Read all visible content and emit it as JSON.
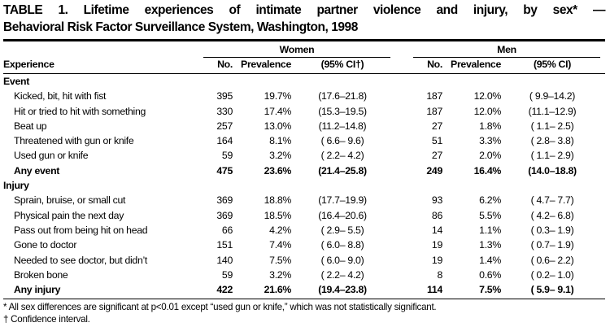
{
  "title_line1": "TABLE 1. Lifetime experiences of intimate partner violence and injury, by sex* —",
  "title_line2": "Behavioral Risk Factor Surveillance System, Washington, 1998",
  "header": {
    "experience": "Experience",
    "women_group": "Women",
    "men_group": "Men",
    "women_no": "No.",
    "women_prevalence": "Prevalence",
    "women_ci": "(95% CI†)",
    "men_no": "No.",
    "men_prevalence": "Prevalence",
    "men_ci": "(95% CI)"
  },
  "sections": [
    {
      "label": "Event",
      "rows": [
        {
          "exp": "Kicked, bit, hit with fist",
          "w_no": "395",
          "w_prev": "19.7%",
          "w_ci": "(17.6–21.8)",
          "m_no": "187",
          "m_prev": "12.0%",
          "m_ci": "( 9.9–14.2)"
        },
        {
          "exp": "Hit or tried to hit with something",
          "w_no": "330",
          "w_prev": "17.4%",
          "w_ci": "(15.3–19.5)",
          "m_no": "187",
          "m_prev": "12.0%",
          "m_ci": "(11.1–12.9)"
        },
        {
          "exp": "Beat up",
          "w_no": "257",
          "w_prev": "13.0%",
          "w_ci": "(11.2–14.8)",
          "m_no": "27",
          "m_prev": "1.8%",
          "m_ci": "( 1.1– 2.5)"
        },
        {
          "exp": "Threatened with gun or knife",
          "w_no": "164",
          "w_prev": "8.1%",
          "w_ci": "( 6.6– 9.6)",
          "m_no": "51",
          "m_prev": "3.3%",
          "m_ci": "( 2.8– 3.8)"
        },
        {
          "exp": "Used gun or knife",
          "w_no": "59",
          "w_prev": "3.2%",
          "w_ci": "( 2.2– 4.2)",
          "m_no": "27",
          "m_prev": "2.0%",
          "m_ci": "( 1.1– 2.9)"
        },
        {
          "exp": "Any event",
          "w_no": "475",
          "w_prev": "23.6%",
          "w_ci": "(21.4–25.8)",
          "m_no": "249",
          "m_prev": "16.4%",
          "m_ci": "(14.0–18.8)"
        }
      ]
    },
    {
      "label": "Injury",
      "rows": [
        {
          "exp": "Sprain, bruise, or small cut",
          "w_no": "369",
          "w_prev": "18.8%",
          "w_ci": "(17.7–19.9)",
          "m_no": "93",
          "m_prev": "6.2%",
          "m_ci": "( 4.7– 7.7)"
        },
        {
          "exp": "Physical pain the next day",
          "w_no": "369",
          "w_prev": "18.5%",
          "w_ci": "(16.4–20.6)",
          "m_no": "86",
          "m_prev": "5.5%",
          "m_ci": "( 4.2– 6.8)"
        },
        {
          "exp": "Pass out from being hit on head",
          "w_no": "66",
          "w_prev": "4.2%",
          "w_ci": "( 2.9– 5.5)",
          "m_no": "14",
          "m_prev": "1.1%",
          "m_ci": "( 0.3– 1.9)"
        },
        {
          "exp": "Gone to doctor",
          "w_no": "151",
          "w_prev": "7.4%",
          "w_ci": "( 6.0– 8.8)",
          "m_no": "19",
          "m_prev": "1.3%",
          "m_ci": "( 0.7– 1.9)"
        },
        {
          "exp": "Needed to see doctor, but didn’t",
          "w_no": "140",
          "w_prev": "7.5%",
          "w_ci": "( 6.0– 9.0)",
          "m_no": "19",
          "m_prev": "1.4%",
          "m_ci": "( 0.6– 2.2)"
        },
        {
          "exp": "Broken bone",
          "w_no": "59",
          "w_prev": "3.2%",
          "w_ci": "( 2.2– 4.2)",
          "m_no": "8",
          "m_prev": "0.6%",
          "m_ci": "( 0.2– 1.0)"
        },
        {
          "exp": "Any injury",
          "w_no": "422",
          "w_prev": "21.6%",
          "w_ci": "(19.4–23.8)",
          "m_no": "114",
          "m_prev": "7.5%",
          "m_ci": "( 5.9– 9.1)"
        }
      ]
    }
  ],
  "footnotes": {
    "f1": "* All sex differences are significant at p<0.01 except “used gun or knife,” which was not statistically significant.",
    "f2": "† Confidence interval."
  }
}
